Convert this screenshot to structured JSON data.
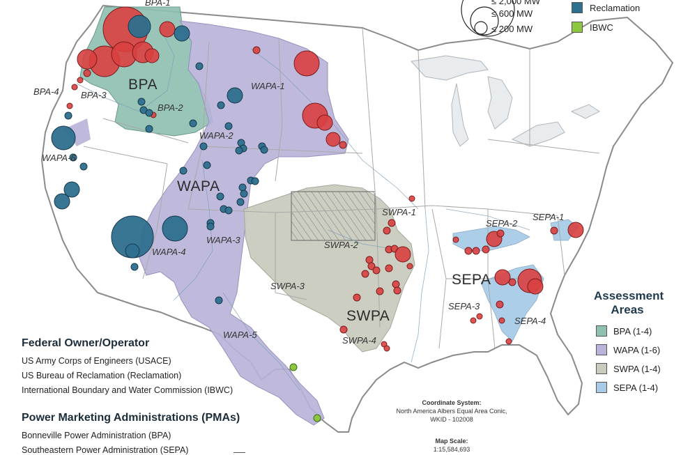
{
  "legend_size": {
    "items": [
      "≤ 2,000 MW",
      "≤ 600 MW",
      "≤ 200 MW"
    ]
  },
  "legend_owner_swatches": {
    "items": [
      {
        "label": "Reclamation",
        "color": "#2e6f8e"
      },
      {
        "label": "IBWC",
        "color": "#8dc63f"
      }
    ]
  },
  "assessment_areas": {
    "title_line1": "Assessment",
    "title_line2": "Areas",
    "items": [
      {
        "label": "BPA (1-4)",
        "color": "#8ebfb1"
      },
      {
        "label": "WAPA (1-6)",
        "color": "#b8b3d8"
      },
      {
        "label": "SWPA (1-4)",
        "color": "#c9cbbf"
      },
      {
        "label": "SEPA (1-4)",
        "color": "#a9cbe8"
      }
    ]
  },
  "federal_owner": {
    "title": "Federal Owner/Operator",
    "items": [
      "US Army Corps of Engineers (USACE)",
      "US Bureau of Reclamation (Reclamation)",
      "International Boundary and Water Commission (IBWC)"
    ]
  },
  "pmas": {
    "title": "Power Marketing Administrations (PMAs)",
    "items": [
      "Bonneville Power Administration (BPA)",
      "Southeastern Power Administration (SEPA)"
    ]
  },
  "region_labels": {
    "bpa": "BPA",
    "wapa": "WAPA",
    "swpa": "SWPA",
    "sepa": "SEPA"
  },
  "sub_labels": {
    "bpa1": "BPA-1",
    "bpa2": "BPA-2",
    "bpa3": "BPA-3",
    "bpa4": "BPA-4",
    "wapa1": "WAPA-1",
    "wapa2": "WAPA-2",
    "wapa3": "WAPA-3",
    "wapa4": "WAPA-4",
    "wapa5": "WAPA-5",
    "wapa6": "WAPA-6",
    "swpa1": "SWPA-1",
    "swpa2": "SWPA-2",
    "swpa3": "SWPA-3",
    "swpa4": "SWPA-4",
    "sepa1": "SEPA-1",
    "sepa2": "SEPA-2",
    "sepa3": "SEPA-3",
    "sepa4": "SEPA-4"
  },
  "coordinate_system": {
    "title": "Coordinate System:",
    "line1": "North America Albers Equal Area Conic,",
    "line2": "WKID - 102008"
  },
  "map_scale": {
    "title": "Map Scale:",
    "value": "1:15,584,693"
  },
  "colors": {
    "usace": "#d94040",
    "reclamation": "#2e6f8e",
    "ibwc": "#8dc63f"
  }
}
